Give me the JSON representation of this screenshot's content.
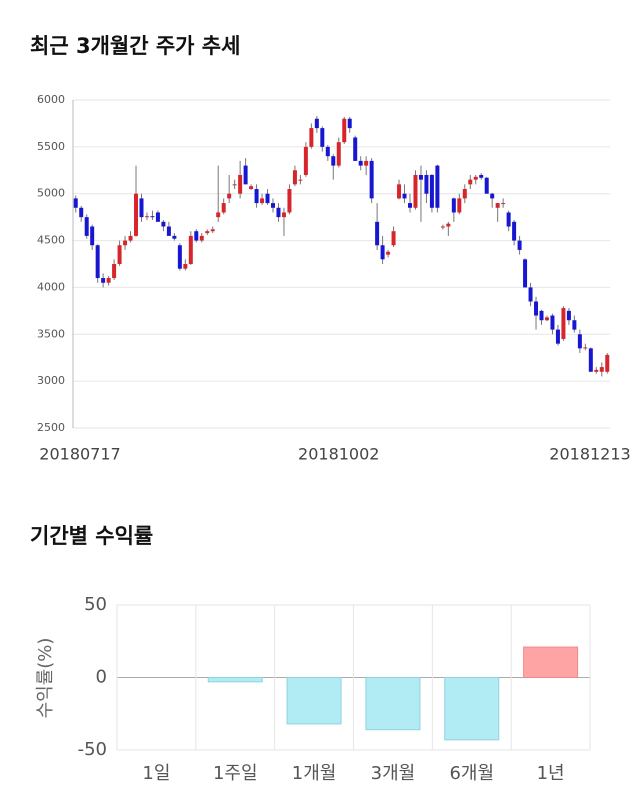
{
  "chart_data": [
    {
      "type": "candlestick",
      "title": "최근 3개월간 주가 추세",
      "categories": [
        "20180717",
        null,
        null,
        null,
        null,
        null,
        null,
        null,
        null,
        null,
        null,
        null,
        null,
        null,
        null,
        null,
        null,
        null,
        null,
        null,
        null,
        null,
        null,
        null,
        null,
        null,
        null,
        null,
        null,
        null,
        null,
        null,
        null,
        null,
        null,
        null,
        null,
        null,
        null,
        null,
        null,
        null,
        null,
        null,
        null,
        null,
        null,
        null,
        "20181002",
        null,
        null,
        null,
        null,
        null,
        null,
        null,
        null,
        null,
        null,
        null,
        null,
        null,
        null,
        null,
        null,
        null,
        null,
        null,
        null,
        null,
        null,
        null,
        null,
        null,
        null,
        null,
        null,
        null,
        null,
        null,
        null,
        null,
        null,
        null,
        null,
        null,
        null,
        null,
        null,
        null,
        null,
        null,
        null,
        null,
        null,
        null,
        null,
        "20181213"
      ],
      "open": [
        4950,
        4850,
        4750,
        4650,
        4450,
        4100,
        4050,
        4100,
        4250,
        4450,
        4500,
        4550,
        4950,
        4750,
        4760,
        4800,
        4700,
        4650,
        4550,
        4450,
        4200,
        4250,
        4600,
        4500,
        4580,
        4600,
        4750,
        4800,
        4950,
        5100,
        5000,
        5300,
        5050,
        5050,
        4900,
        5000,
        4900,
        4850,
        4750,
        4800,
        5100,
        5150,
        5200,
        5500,
        5800,
        5700,
        5500,
        5400,
        5300,
        5550,
        5800,
        5600,
        5350,
        5300,
        5350,
        4700,
        4450,
        4350,
        4450,
        4950,
        5000,
        4900,
        4850,
        5200,
        5200,
        5200,
        5300,
        4650,
        4650,
        4950,
        4800,
        4950,
        5100,
        5150,
        5200,
        5170,
        5000,
        4850,
        4900,
        4800,
        4700,
        4500,
        4300,
        4000,
        3850,
        3750,
        3650,
        3700,
        3550,
        3450,
        3750,
        3650,
        3500,
        3350,
        3350,
        3100,
        3100,
        3100
      ],
      "high": [
        4980,
        4870,
        4780,
        4670,
        4460,
        4150,
        4120,
        4300,
        4500,
        4550,
        4600,
        5300,
        5000,
        4800,
        4820,
        4820,
        4720,
        4700,
        4580,
        4470,
        4300,
        4600,
        4620,
        4580,
        4620,
        4650,
        5300,
        4950,
        5200,
        5150,
        5350,
        5380,
        5100,
        5100,
        5000,
        5050,
        4950,
        4900,
        4850,
        5100,
        5300,
        5200,
        5550,
        5750,
        5830,
        5720,
        5520,
        5420,
        5600,
        5820,
        5820,
        5620,
        5400,
        5400,
        5380,
        4900,
        4550,
        4400,
        4650,
        5150,
        5100,
        5000,
        5250,
        5300,
        5250,
        5210,
        5310,
        4670,
        4700,
        4960,
        5000,
        5100,
        5200,
        5200,
        5220,
        5180,
        5010,
        4900,
        4950,
        4820,
        4720,
        4550,
        4310,
        4050,
        3900,
        3760,
        3700,
        3720,
        3600,
        3800,
        3780,
        3700,
        3550,
        3400,
        3360,
        3150,
        3200,
        3300
      ],
      "low": [
        4800,
        4700,
        4520,
        4400,
        4050,
        4000,
        4020,
        4080,
        4230,
        4400,
        4480,
        4540,
        4700,
        4720,
        4720,
        4700,
        4600,
        4550,
        4500,
        4180,
        4180,
        4240,
        4480,
        4480,
        4560,
        4580,
        4700,
        4780,
        4900,
        5050,
        4950,
        5100,
        5040,
        4850,
        4880,
        4880,
        4800,
        4700,
        4550,
        4780,
        5080,
        5100,
        5180,
        5480,
        5650,
        5450,
        5350,
        5150,
        5280,
        5530,
        5650,
        5350,
        5250,
        5200,
        4900,
        4400,
        4250,
        4320,
        4430,
        4940,
        4900,
        4800,
        4830,
        4700,
        4900,
        4800,
        4800,
        4620,
        4550,
        4700,
        4780,
        4900,
        5050,
        5100,
        5150,
        5000,
        4850,
        4700,
        4850,
        4600,
        4450,
        4350,
        4000,
        3800,
        3550,
        3600,
        3640,
        3500,
        3380,
        3430,
        3600,
        3520,
        3300,
        3330,
        3100,
        3080,
        3050,
        3080
      ],
      "close": [
        4850,
        4750,
        4550,
        4450,
        4100,
        4050,
        4100,
        4250,
        4450,
        4500,
        4550,
        5000,
        4750,
        4760,
        4750,
        4700,
        4650,
        4550,
        4520,
        4200,
        4250,
        4550,
        4500,
        4550,
        4600,
        4620,
        4800,
        4900,
        5000,
        5100,
        5200,
        5100,
        5080,
        4900,
        4950,
        4900,
        4850,
        4750,
        4800,
        5050,
        5250,
        5150,
        5500,
        5700,
        5700,
        5500,
        5400,
        5300,
        5550,
        5800,
        5700,
        5350,
        5300,
        5350,
        4950,
        4450,
        4300,
        4380,
        4600,
        5100,
        4950,
        4850,
        5200,
        5150,
        5000,
        4850,
        4850,
        4650,
        4680,
        4800,
        4950,
        5050,
        5150,
        5180,
        5170,
        5000,
        4950,
        4900,
        4900,
        4650,
        4500,
        4400,
        4000,
        3850,
        3700,
        3650,
        3680,
        3550,
        3400,
        3780,
        3650,
        3550,
        3350,
        3360,
        3100,
        3120,
        3150,
        3280
      ],
      "up_color": "#d7262b",
      "down_color": "#1717d1",
      "ylim": [
        2500,
        6000
      ],
      "yticks": [
        2500,
        3000,
        3500,
        4000,
        4500,
        5000,
        5500,
        6000
      ],
      "grid": true
    },
    {
      "type": "bar",
      "title": "기간별 수익률",
      "y_label": "수익률(%)",
      "categories": [
        "1일",
        "1주일",
        "1개월",
        "3개월",
        "6개월",
        "1년"
      ],
      "values": [
        0,
        -3,
        -32,
        -36,
        -43,
        21
      ],
      "up_color": "#ffa4a4",
      "down_color": "#b1ebf3",
      "ylim": [
        -50,
        50
      ],
      "yticks": [
        -50,
        0,
        50
      ],
      "grid": true
    }
  ]
}
